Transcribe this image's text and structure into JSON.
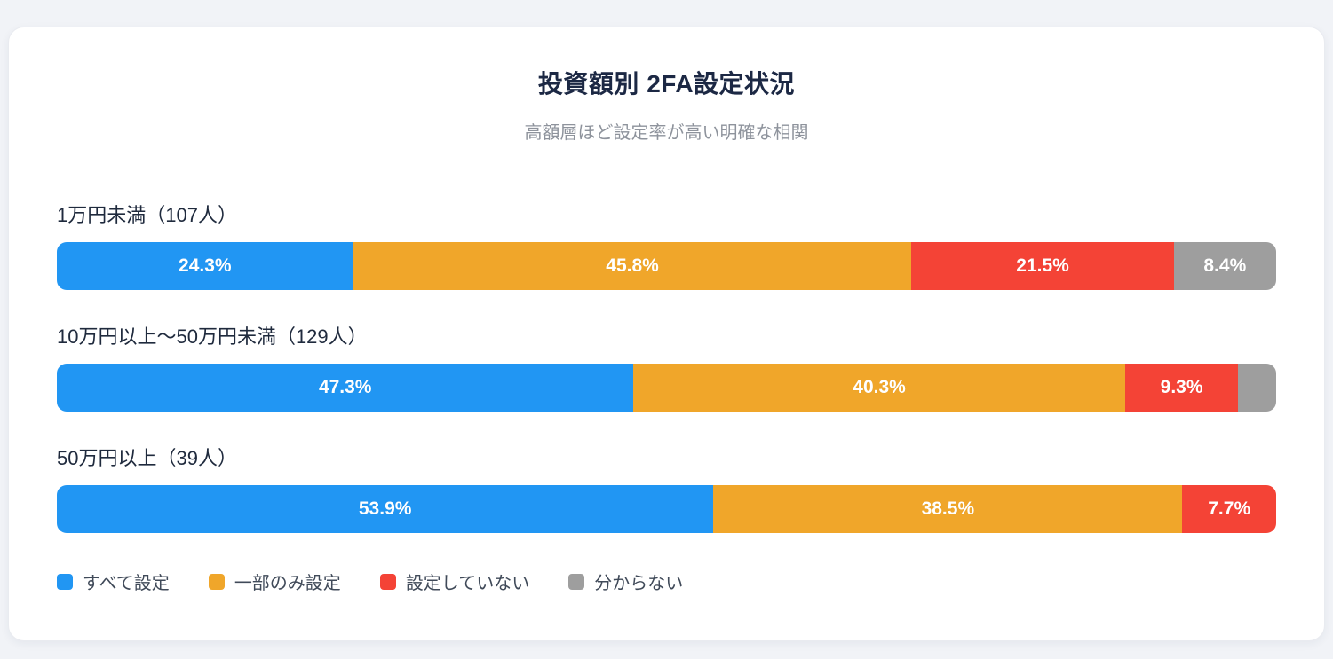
{
  "chart_data": {
    "type": "bar",
    "variant": "horizontal-stacked-percent",
    "title": "投資額別 2FA設定状況",
    "subtitle": "高額層ほど設定率が高い明確な相関",
    "categories": [
      "1万円未満（107人）",
      "10万円以上〜50万円未満（129人）",
      "50万円以上（39人）"
    ],
    "series": [
      {
        "name": "すべて設定",
        "color": "#2196f3",
        "values": [
          24.3,
          47.3,
          53.9
        ]
      },
      {
        "name": "一部のみ設定",
        "color": "#f0a62a",
        "values": [
          45.8,
          40.3,
          38.5
        ]
      },
      {
        "name": "設定していない",
        "color": "#f44336",
        "values": [
          21.5,
          9.3,
          7.7
        ]
      },
      {
        "name": "分からない",
        "color": "#9e9e9e",
        "values": [
          8.4,
          3.1,
          0
        ]
      }
    ],
    "segment_labels": [
      [
        "24.3%",
        "45.8%",
        "21.5%",
        "8.4%"
      ],
      [
        "47.3%",
        "40.3%",
        "9.3%",
        ""
      ],
      [
        "53.9%",
        "38.5%",
        "7.7%",
        ""
      ]
    ],
    "xlim": [
      0,
      100
    ],
    "grid": false,
    "legend_position": "bottom"
  },
  "colors": {
    "page_background": "#f1f3f7",
    "card_background": "#ffffff",
    "title_text": "#1c2844",
    "subtitle_text": "#8e939c",
    "row_label_text": "#1f2a3d",
    "segment_label_text": "#ffffff",
    "legend_text": "#404a59"
  }
}
